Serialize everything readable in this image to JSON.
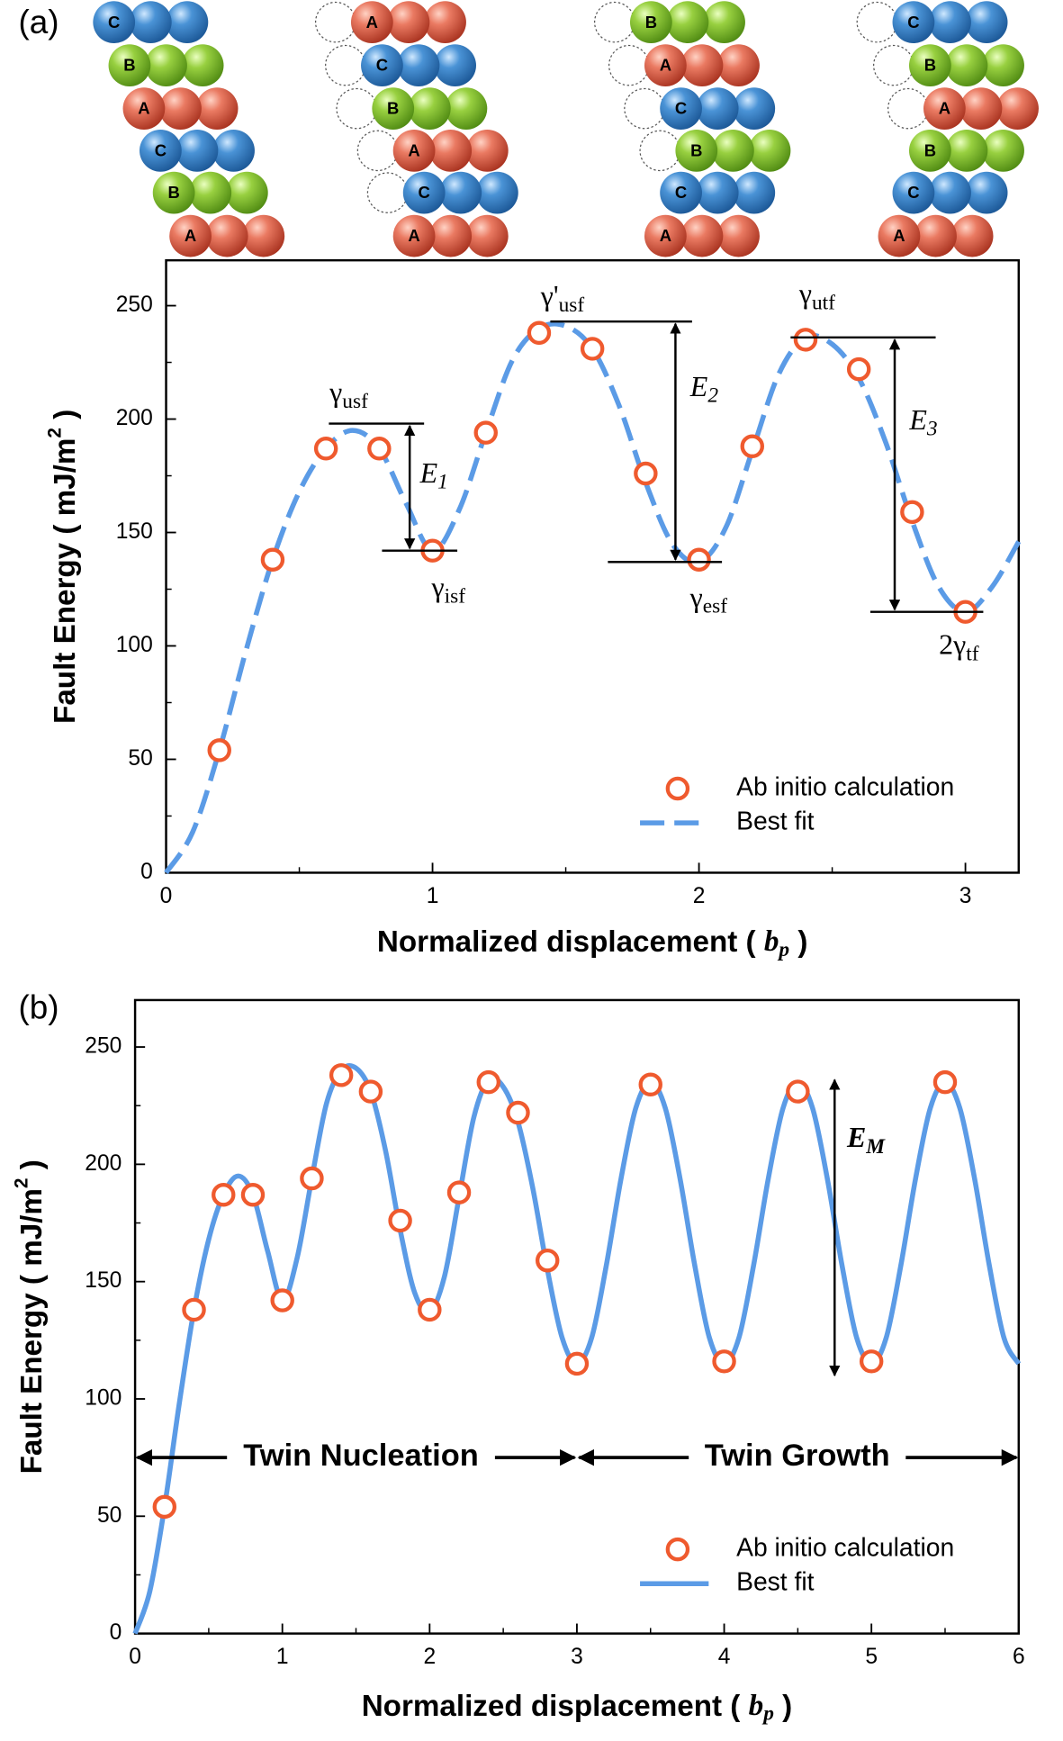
{
  "chart_data": [
    {
      "type": "line",
      "label": "(a)",
      "stacks": [
        [
          "C",
          "B",
          "A",
          "C",
          "B",
          "A"
        ],
        [
          "A",
          "C",
          "B",
          "A",
          "C",
          "A"
        ],
        [
          "B",
          "A",
          "C",
          "B",
          "C",
          "A"
        ],
        [
          "C",
          "B",
          "A",
          "B",
          "C",
          "A"
        ]
      ],
      "xlabel": [
        "Normalized displacement ( ",
        "b",
        "p",
        " )"
      ],
      "ylabel": [
        "Fault Energy ( mJ/m",
        "2",
        " )"
      ],
      "xlim": [
        0,
        3.2
      ],
      "ylim": [
        0,
        270
      ],
      "xticks": [
        0,
        1,
        2,
        3
      ],
      "xminor": [
        0.5,
        1.5,
        2.5
      ],
      "yticks": [
        0,
        50,
        100,
        150,
        200,
        250
      ],
      "yminor": [
        25,
        75,
        125,
        175,
        225
      ],
      "legend": "lower right",
      "series": [
        {
          "name": "Ab initio calculation",
          "color": "#ef5a2e",
          "marker": "circle",
          "x": [
            0.2,
            0.4,
            0.6,
            0.8,
            1.0,
            1.2,
            1.4,
            1.6,
            1.8,
            2.0,
            2.2,
            2.4,
            2.6,
            2.8,
            3.0
          ],
          "values": [
            54,
            138,
            187,
            187,
            142,
            194,
            238,
            231,
            176,
            138,
            188,
            235,
            222,
            159,
            115
          ]
        },
        {
          "name": "Best fit",
          "color": "#5b9be6",
          "style": "dashed",
          "x": [
            0,
            0.1,
            0.2,
            0.3,
            0.4,
            0.5,
            0.6,
            0.7,
            0.8,
            0.9,
            1.0,
            1.1,
            1.2,
            1.3,
            1.4,
            1.5,
            1.6,
            1.7,
            1.8,
            1.9,
            2.0,
            2.1,
            2.2,
            2.3,
            2.4,
            2.5,
            2.6,
            2.7,
            2.8,
            2.9,
            3.0,
            3.1,
            3.2
          ],
          "values": [
            0,
            18,
            54,
            98,
            138,
            168,
            187,
            195,
            187,
            163,
            142,
            160,
            194,
            226,
            240,
            241,
            231,
            206,
            172,
            145,
            137,
            152,
            186,
            220,
            236,
            233,
            218,
            190,
            155,
            126,
            115,
            126,
            146
          ]
        }
      ],
      "annotations": [
        {
          "text": "γ",
          "sub": "usf"
        },
        {
          "text": "γ",
          "sub": "isf"
        },
        {
          "text": "γ'",
          "sub": "usf"
        },
        {
          "text": "γ",
          "sub": "esf"
        },
        {
          "text": "γ",
          "sub": "utf"
        },
        {
          "text": "2γ",
          "sub": "tf"
        }
      ],
      "arrows": [
        {
          "text": "E",
          "sub": "1",
          "from": 198,
          "to": 142
        },
        {
          "text": "E",
          "sub": "2",
          "from": 243,
          "to": 137
        },
        {
          "text": "E",
          "sub": "3",
          "from": 236,
          "to": 115
        }
      ]
    },
    {
      "type": "line",
      "label": "(b)",
      "xlabel": [
        "Normalized displacement ( ",
        "b",
        "p",
        " )"
      ],
      "ylabel": [
        "Fault Energy ( mJ/m",
        "2",
        " )"
      ],
      "xlim": [
        0,
        6
      ],
      "ylim": [
        0,
        270
      ],
      "xticks": [
        0,
        1,
        2,
        3,
        4,
        5,
        6
      ],
      "xminor": [
        0.5,
        1.5,
        2.5,
        3.5,
        4.5,
        5.5
      ],
      "yticks": [
        0,
        50,
        100,
        150,
        200,
        250
      ],
      "yminor": [
        25,
        75,
        125,
        175,
        225
      ],
      "legend": "lower right",
      "series": [
        {
          "name": "Ab initio calculation",
          "color": "#ef5a2e",
          "marker": "circle",
          "x": [
            0.2,
            0.4,
            0.6,
            0.8,
            1.0,
            1.2,
            1.4,
            1.6,
            1.8,
            2.0,
            2.2,
            2.4,
            2.6,
            2.8,
            3.0,
            3.5,
            4.0,
            4.5,
            5.0,
            5.5
          ],
          "values": [
            54,
            138,
            187,
            187,
            142,
            194,
            238,
            231,
            176,
            138,
            188,
            235,
            222,
            159,
            115,
            234,
            116,
            231,
            116,
            235
          ]
        },
        {
          "name": "Best fit",
          "color": "#5b9be6",
          "style": "solid",
          "x": [
            0,
            0.1,
            0.2,
            0.3,
            0.4,
            0.5,
            0.6,
            0.7,
            0.8,
            0.9,
            1.0,
            1.1,
            1.2,
            1.3,
            1.4,
            1.5,
            1.6,
            1.7,
            1.8,
            1.9,
            2.0,
            2.1,
            2.2,
            2.3,
            2.4,
            2.5,
            2.6,
            2.7,
            2.8,
            2.9,
            3.0,
            3.1,
            3.2,
            3.3,
            3.4,
            3.5,
            3.6,
            3.7,
            3.8,
            3.9,
            4.0,
            4.1,
            4.2,
            4.3,
            4.4,
            4.5,
            4.6,
            4.7,
            4.8,
            4.9,
            5.0,
            5.1,
            5.2,
            5.3,
            5.4,
            5.5,
            5.6,
            5.7,
            5.8,
            5.9,
            6.0
          ],
          "values": [
            0,
            18,
            54,
            98,
            138,
            168,
            187,
            195,
            187,
            163,
            142,
            160,
            194,
            226,
            240,
            241,
            231,
            206,
            172,
            145,
            137,
            152,
            186,
            220,
            236,
            233,
            218,
            190,
            155,
            126,
            115,
            126,
            157,
            194,
            224,
            235,
            224,
            194,
            157,
            126,
            115,
            126,
            157,
            194,
            224,
            235,
            224,
            194,
            157,
            126,
            115,
            126,
            157,
            194,
            224,
            235,
            224,
            194,
            157,
            126,
            115
          ]
        }
      ],
      "spans": [
        {
          "text": "Twin Nucleation",
          "from": 0,
          "to": 3,
          "y": 75
        },
        {
          "text": "Twin Growth",
          "from": 3,
          "to": 6,
          "y": 75
        }
      ],
      "arrows": [
        {
          "text": "E",
          "sub": "M",
          "at": 4.75,
          "from": 236,
          "to": 110
        }
      ]
    }
  ]
}
